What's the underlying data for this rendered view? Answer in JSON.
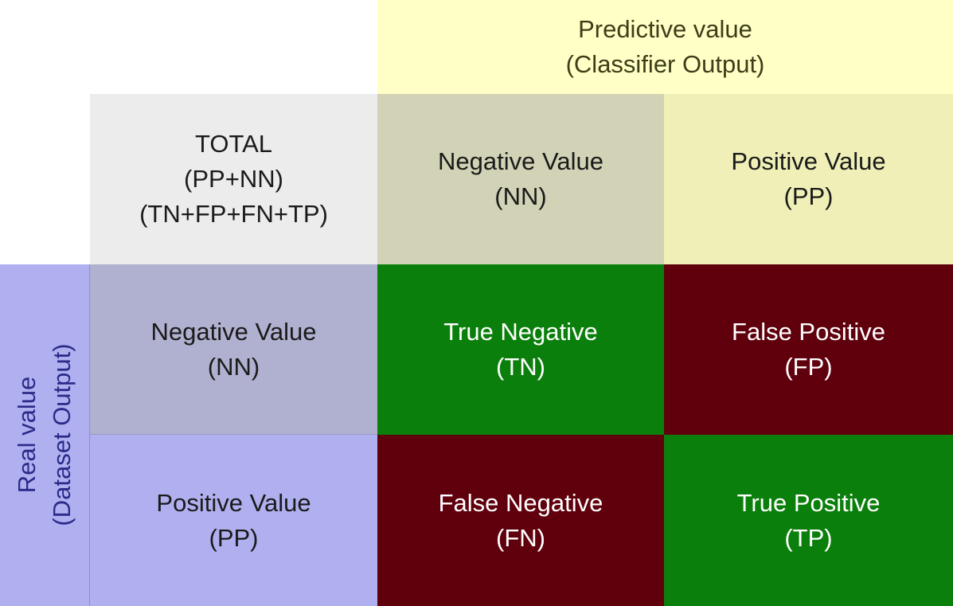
{
  "predictive_header": {
    "line1": "Predictive value",
    "line2": "(Classifier Output)"
  },
  "real_header": {
    "line1": "Real value",
    "line2": "(Dataset Output)"
  },
  "total": {
    "line1": "TOTAL",
    "line2": "(PP+NN)",
    "line3": "(TN+FP+FN+TP)"
  },
  "columns": [
    {
      "label": "Negative Value",
      "abbr": "(NN)"
    },
    {
      "label": "Positive Value",
      "abbr": "(PP)"
    }
  ],
  "rows": [
    {
      "label": "Negative Value",
      "abbr": "(NN)"
    },
    {
      "label": "Positive Value",
      "abbr": "(PP)"
    }
  ],
  "cells": {
    "tn": {
      "label": "True Negative",
      "abbr": "(TN)"
    },
    "fp": {
      "label": "False Positive",
      "abbr": "(FP)"
    },
    "fn": {
      "label": "False Negative",
      "abbr": "(FN)"
    },
    "tp": {
      "label": "True Positive",
      "abbr": "(TP)"
    }
  },
  "colors": {
    "predictive_header_bg": "#ffffc6",
    "total_bg": "#ececec",
    "col_negative_bg": "#d2d2b6",
    "col_positive_bg": "#efefb7",
    "real_header_bg": "#b0b0f0",
    "row_negative_bg": "#b0b0d0",
    "row_positive_bg": "#b0b0f0",
    "true_bg": "#0b7f0b",
    "false_bg": "#60000d"
  }
}
